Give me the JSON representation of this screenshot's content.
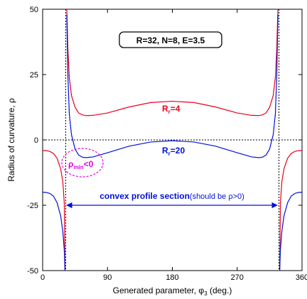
{
  "chart_data": {
    "type": "line",
    "xlabel": "Generated parameter, φ",
    "xlabel_sub": "3",
    "xlabel_suffix": " (deg.)",
    "ylabel": "Radius of curvature, ρ",
    "xlim": [
      0,
      360
    ],
    "ylim": [
      -50,
      50
    ],
    "x_ticks": [
      0,
      90,
      180,
      270,
      360
    ],
    "y_ticks": [
      -50,
      -25,
      0,
      25,
      50
    ],
    "params_box": "R=32, N=8, E=3.5",
    "asymptotes_x": [
      32,
      328
    ],
    "colors": {
      "series_r4": "#e8001c",
      "series_r20": "#0010d8",
      "arrow": "#0010d8",
      "annotation": "#e600e6"
    },
    "series": [
      {
        "name": "Rr=4",
        "label_main": "R",
        "label_sub": "r",
        "label_value": "=4",
        "color": "#e8001c",
        "segments": [
          {
            "x": [
              0,
              5,
              10,
              15,
              20,
              25,
              28,
              30,
              31
            ],
            "y": [
              -4,
              -4.1,
              -4.4,
              -5.2,
              -7,
              -11,
              -16,
              -24,
              -50
            ]
          },
          {
            "x": [
              33.5,
              35,
              37,
              40,
              45,
              50,
              55,
              60,
              70,
              90,
              120,
              150,
              180,
              210,
              240,
              270,
              290,
              300,
              305,
              310,
              315,
              320,
              323,
              325,
              326.5
            ],
            "y": [
              50,
              35,
              24,
              17,
              12.5,
              10.3,
              9.6,
              9.3,
              9.4,
              10.3,
              12.6,
              14.3,
              14.8,
              14.3,
              12.6,
              10.3,
              9.4,
              9.3,
              9.6,
              10.3,
              12.5,
              17,
              24,
              35,
              50
            ]
          },
          {
            "x": [
              329,
              330,
              332,
              335,
              340,
              345,
              350,
              355,
              360
            ],
            "y": [
              -50,
              -24,
              -16,
              -11,
              -7,
              -5.2,
              -4.4,
              -4.1,
              -4
            ]
          }
        ]
      },
      {
        "name": "Rr=20",
        "label_main": "R",
        "label_sub": "r",
        "label_value": "=20",
        "color": "#0010d8",
        "segments": [
          {
            "x": [
              0,
              5,
              10,
              15,
              20,
              25,
              28,
              30,
              31
            ],
            "y": [
              -20,
              -20.1,
              -20.5,
              -21.5,
              -24,
              -29,
              -35,
              -42,
              -50
            ]
          },
          {
            "x": [
              33.5,
              35,
              37,
              40,
              45,
              50,
              55,
              60,
              70,
              90,
              120,
              150,
              180,
              210,
              240,
              270,
              290,
              300,
              305,
              310,
              315,
              320,
              323,
              325,
              326.5
            ],
            "y": [
              48,
              25,
              10,
              2,
              -3.5,
              -5.8,
              -6.6,
              -6.8,
              -6.5,
              -4.9,
              -2.4,
              -0.8,
              -0.3,
              -0.8,
              -2.4,
              -4.9,
              -6.5,
              -6.8,
              -6.6,
              -5.8,
              -3.5,
              2,
              10,
              25,
              48
            ]
          },
          {
            "x": [
              329,
              330,
              332,
              335,
              340,
              345,
              350,
              355,
              360
            ],
            "y": [
              -50,
              -42,
              -35,
              -29,
              -24,
              -21.5,
              -20.5,
              -20.1,
              -20
            ]
          }
        ]
      }
    ],
    "annotation_rho_min": {
      "main": "ρ",
      "sub": "min",
      "suffix": "<0"
    },
    "convex_label": "convex profile section",
    "convex_note": "(should be ρ>0)",
    "grid": false
  }
}
